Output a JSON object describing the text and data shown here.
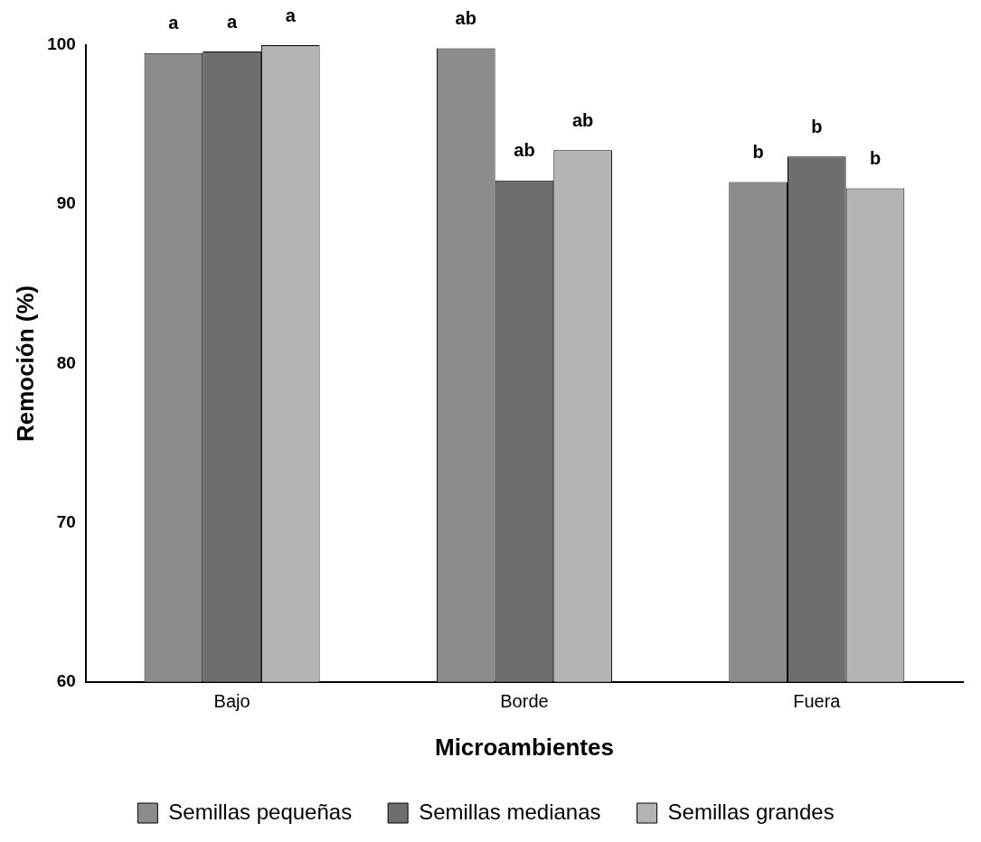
{
  "chart_data": {
    "type": "bar",
    "xlabel": "Microambientes",
    "ylabel": "Remoción (%)",
    "categories": [
      "Bajo",
      "Borde",
      "Fuera"
    ],
    "series": [
      {
        "name": "Semillas pequeñas",
        "color": "#8c8c8c",
        "values": [
          99.5,
          99.8,
          91.4
        ],
        "value_labels": [
          "a",
          "ab",
          "b"
        ]
      },
      {
        "name": "Semillas medianas",
        "color": "#6e6e6e",
        "values": [
          99.6,
          91.5,
          93.0
        ],
        "value_labels": [
          "a",
          "ab",
          "b"
        ]
      },
      {
        "name": "Semillas grandes",
        "color": "#b4b4b4",
        "values": [
          100,
          93.4,
          91.0
        ],
        "value_labels": [
          "a",
          "ab",
          "b"
        ]
      }
    ],
    "ylim": [
      60,
      100
    ],
    "yticks": [
      60,
      70,
      80,
      90,
      100
    ],
    "grid": false,
    "legend": "bottom"
  }
}
